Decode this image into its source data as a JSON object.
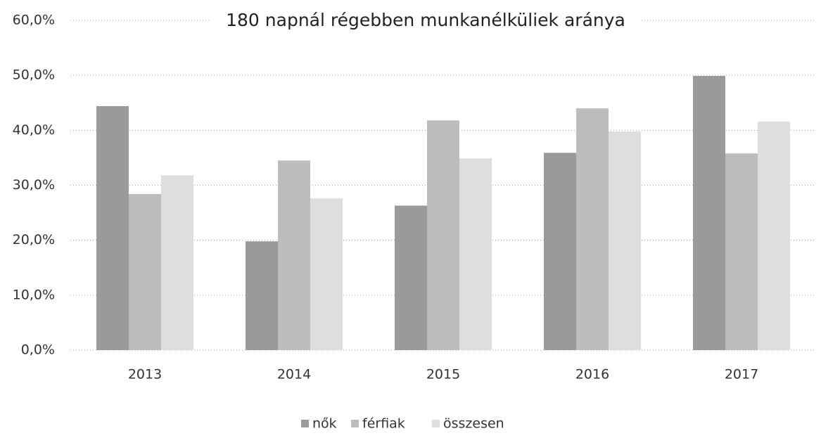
{
  "chart_data": {
    "type": "bar",
    "title": "180 napnál régebben munkanélküliek aránya",
    "categories": [
      "2013",
      "2014",
      "2015",
      "2016",
      "2017"
    ],
    "series": [
      {
        "name": "nők",
        "color": "#9a9a9a",
        "values": [
          44.4,
          19.8,
          26.3,
          35.9,
          49.9
        ]
      },
      {
        "name": "férfiak",
        "color": "#bdbdbd",
        "values": [
          28.4,
          34.5,
          41.8,
          44.0,
          35.8
        ]
      },
      {
        "name": "összesen",
        "color": "#dedede",
        "values": [
          31.8,
          27.6,
          34.9,
          39.8,
          41.6
        ]
      }
    ],
    "ylim": [
      0,
      60
    ],
    "yticks": [
      {
        "value": 0,
        "label": "0,0%"
      },
      {
        "value": 10,
        "label": "10,0%"
      },
      {
        "value": 20,
        "label": "20,0%"
      },
      {
        "value": 30,
        "label": "30,0%"
      },
      {
        "value": 40,
        "label": "40,0%"
      },
      {
        "value": 50,
        "label": "50,0%"
      },
      {
        "value": 60,
        "label": "60,0%"
      }
    ],
    "grid": true,
    "legend": "bottom"
  }
}
